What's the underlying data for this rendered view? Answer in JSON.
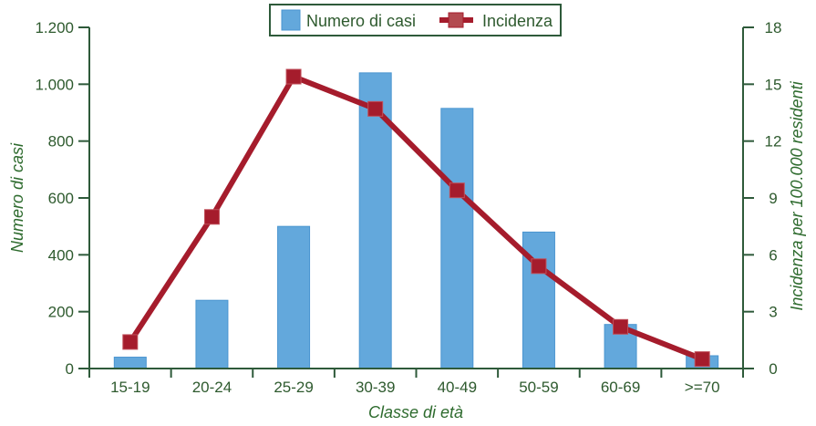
{
  "chart_data": {
    "type": "bar+line",
    "title": "",
    "categories": [
      "15-19",
      "20-24",
      "25-29",
      "30-39",
      "40-49",
      "50-59",
      "60-69",
      ">=70"
    ],
    "series": [
      {
        "name": "Numero di casi",
        "type": "bar",
        "axis": "left",
        "color": "#63a8dc",
        "values": [
          40,
          240,
          500,
          1040,
          915,
          480,
          155,
          45
        ]
      },
      {
        "name": "Incidenza",
        "type": "line",
        "axis": "right",
        "color": "#a51c2c",
        "values": [
          1.4,
          8.0,
          15.4,
          13.7,
          9.4,
          5.4,
          2.2,
          0.5
        ]
      }
    ],
    "xlabel": "Classe di età",
    "ylabel": "Numero di casi",
    "y2label": "Incidenza per 100.000 residenti",
    "ylim": [
      0,
      1200
    ],
    "y2lim": [
      0,
      18
    ],
    "yticks": [
      "0",
      "200",
      "400",
      "600",
      "800",
      "1.000",
      "1.200"
    ],
    "y2ticks": [
      "0",
      "3",
      "6",
      "9",
      "12",
      "15",
      "18"
    ],
    "grid": false,
    "legend_position": "top-center"
  },
  "legend": {
    "bar_label": "Numero di casi",
    "line_label": "Incidenza"
  },
  "axes": {
    "x_title": "Classe di età",
    "y_title": "Numero di casi",
    "y2_title": "Incidenza per 100.000 residenti"
  },
  "colors": {
    "axis": "#2e5a3a",
    "bar": "#63a8dc",
    "bar_edge": "#4a95d0",
    "line": "#a51c2c",
    "marker": "#a51c2c",
    "text": "#2e5a2e"
  }
}
